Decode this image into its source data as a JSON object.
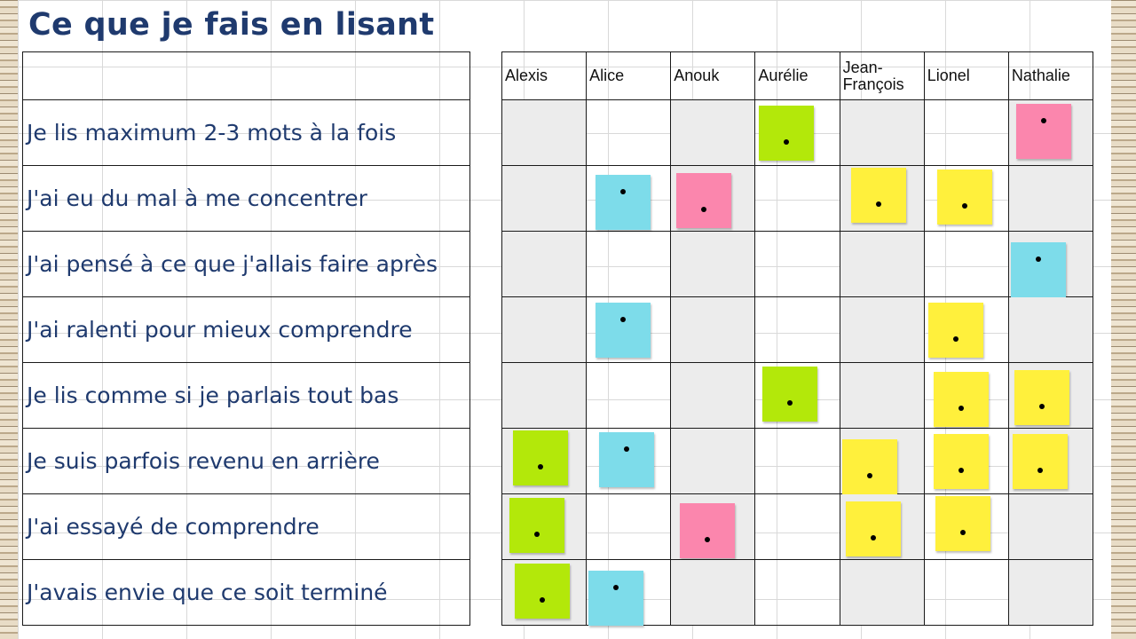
{
  "title": "Ce que je fais en lisant",
  "names": [
    "Alexis",
    "Alice",
    "Anouk",
    "Aurélie",
    "Jean-\nFrançois",
    "Lionel",
    "Nathalie"
  ],
  "rows": [
    "Je lis maximum 2-3 mots à la fois",
    "J'ai eu du mal à me concentrer",
    "J'ai pensé à ce que j'allais faire après",
    "J'ai ralenti pour mieux comprendre",
    "Je lis comme si je parlais tout bas",
    "Je suis parfois revenu en arrière",
    "J'ai essayé de comprendre",
    "J'avais envie que ce soit terminé"
  ],
  "colors": {
    "green": "#b3e80a",
    "blue": "#7ddcea",
    "pink": "#fb86ad",
    "yellow": "#fff03c",
    "title": "#1f3a6e"
  },
  "notes": [
    {
      "row": 0,
      "col": 3,
      "color": "green"
    },
    {
      "row": 0,
      "col": 6,
      "color": "pink"
    },
    {
      "row": 1,
      "col": 1,
      "color": "blue"
    },
    {
      "row": 1,
      "col": 2,
      "color": "pink"
    },
    {
      "row": 1,
      "col": 4,
      "color": "yellow"
    },
    {
      "row": 1,
      "col": 5,
      "color": "yellow"
    },
    {
      "row": 2,
      "col": 6,
      "color": "blue"
    },
    {
      "row": 3,
      "col": 1,
      "color": "blue"
    },
    {
      "row": 3,
      "col": 5,
      "color": "yellow"
    },
    {
      "row": 4,
      "col": 3,
      "color": "green"
    },
    {
      "row": 4,
      "col": 5,
      "color": "yellow"
    },
    {
      "row": 4,
      "col": 6,
      "color": "yellow"
    },
    {
      "row": 5,
      "col": 0,
      "color": "green"
    },
    {
      "row": 5,
      "col": 1,
      "color": "blue"
    },
    {
      "row": 5,
      "col": 4,
      "color": "yellow"
    },
    {
      "row": 5,
      "col": 5,
      "color": "yellow"
    },
    {
      "row": 5,
      "col": 6,
      "color": "yellow"
    },
    {
      "row": 6,
      "col": 0,
      "color": "green"
    },
    {
      "row": 6,
      "col": 2,
      "color": "pink"
    },
    {
      "row": 6,
      "col": 4,
      "color": "yellow"
    },
    {
      "row": 6,
      "col": 5,
      "color": "yellow"
    },
    {
      "row": 7,
      "col": 0,
      "color": "green"
    },
    {
      "row": 7,
      "col": 1,
      "color": "blue"
    }
  ]
}
